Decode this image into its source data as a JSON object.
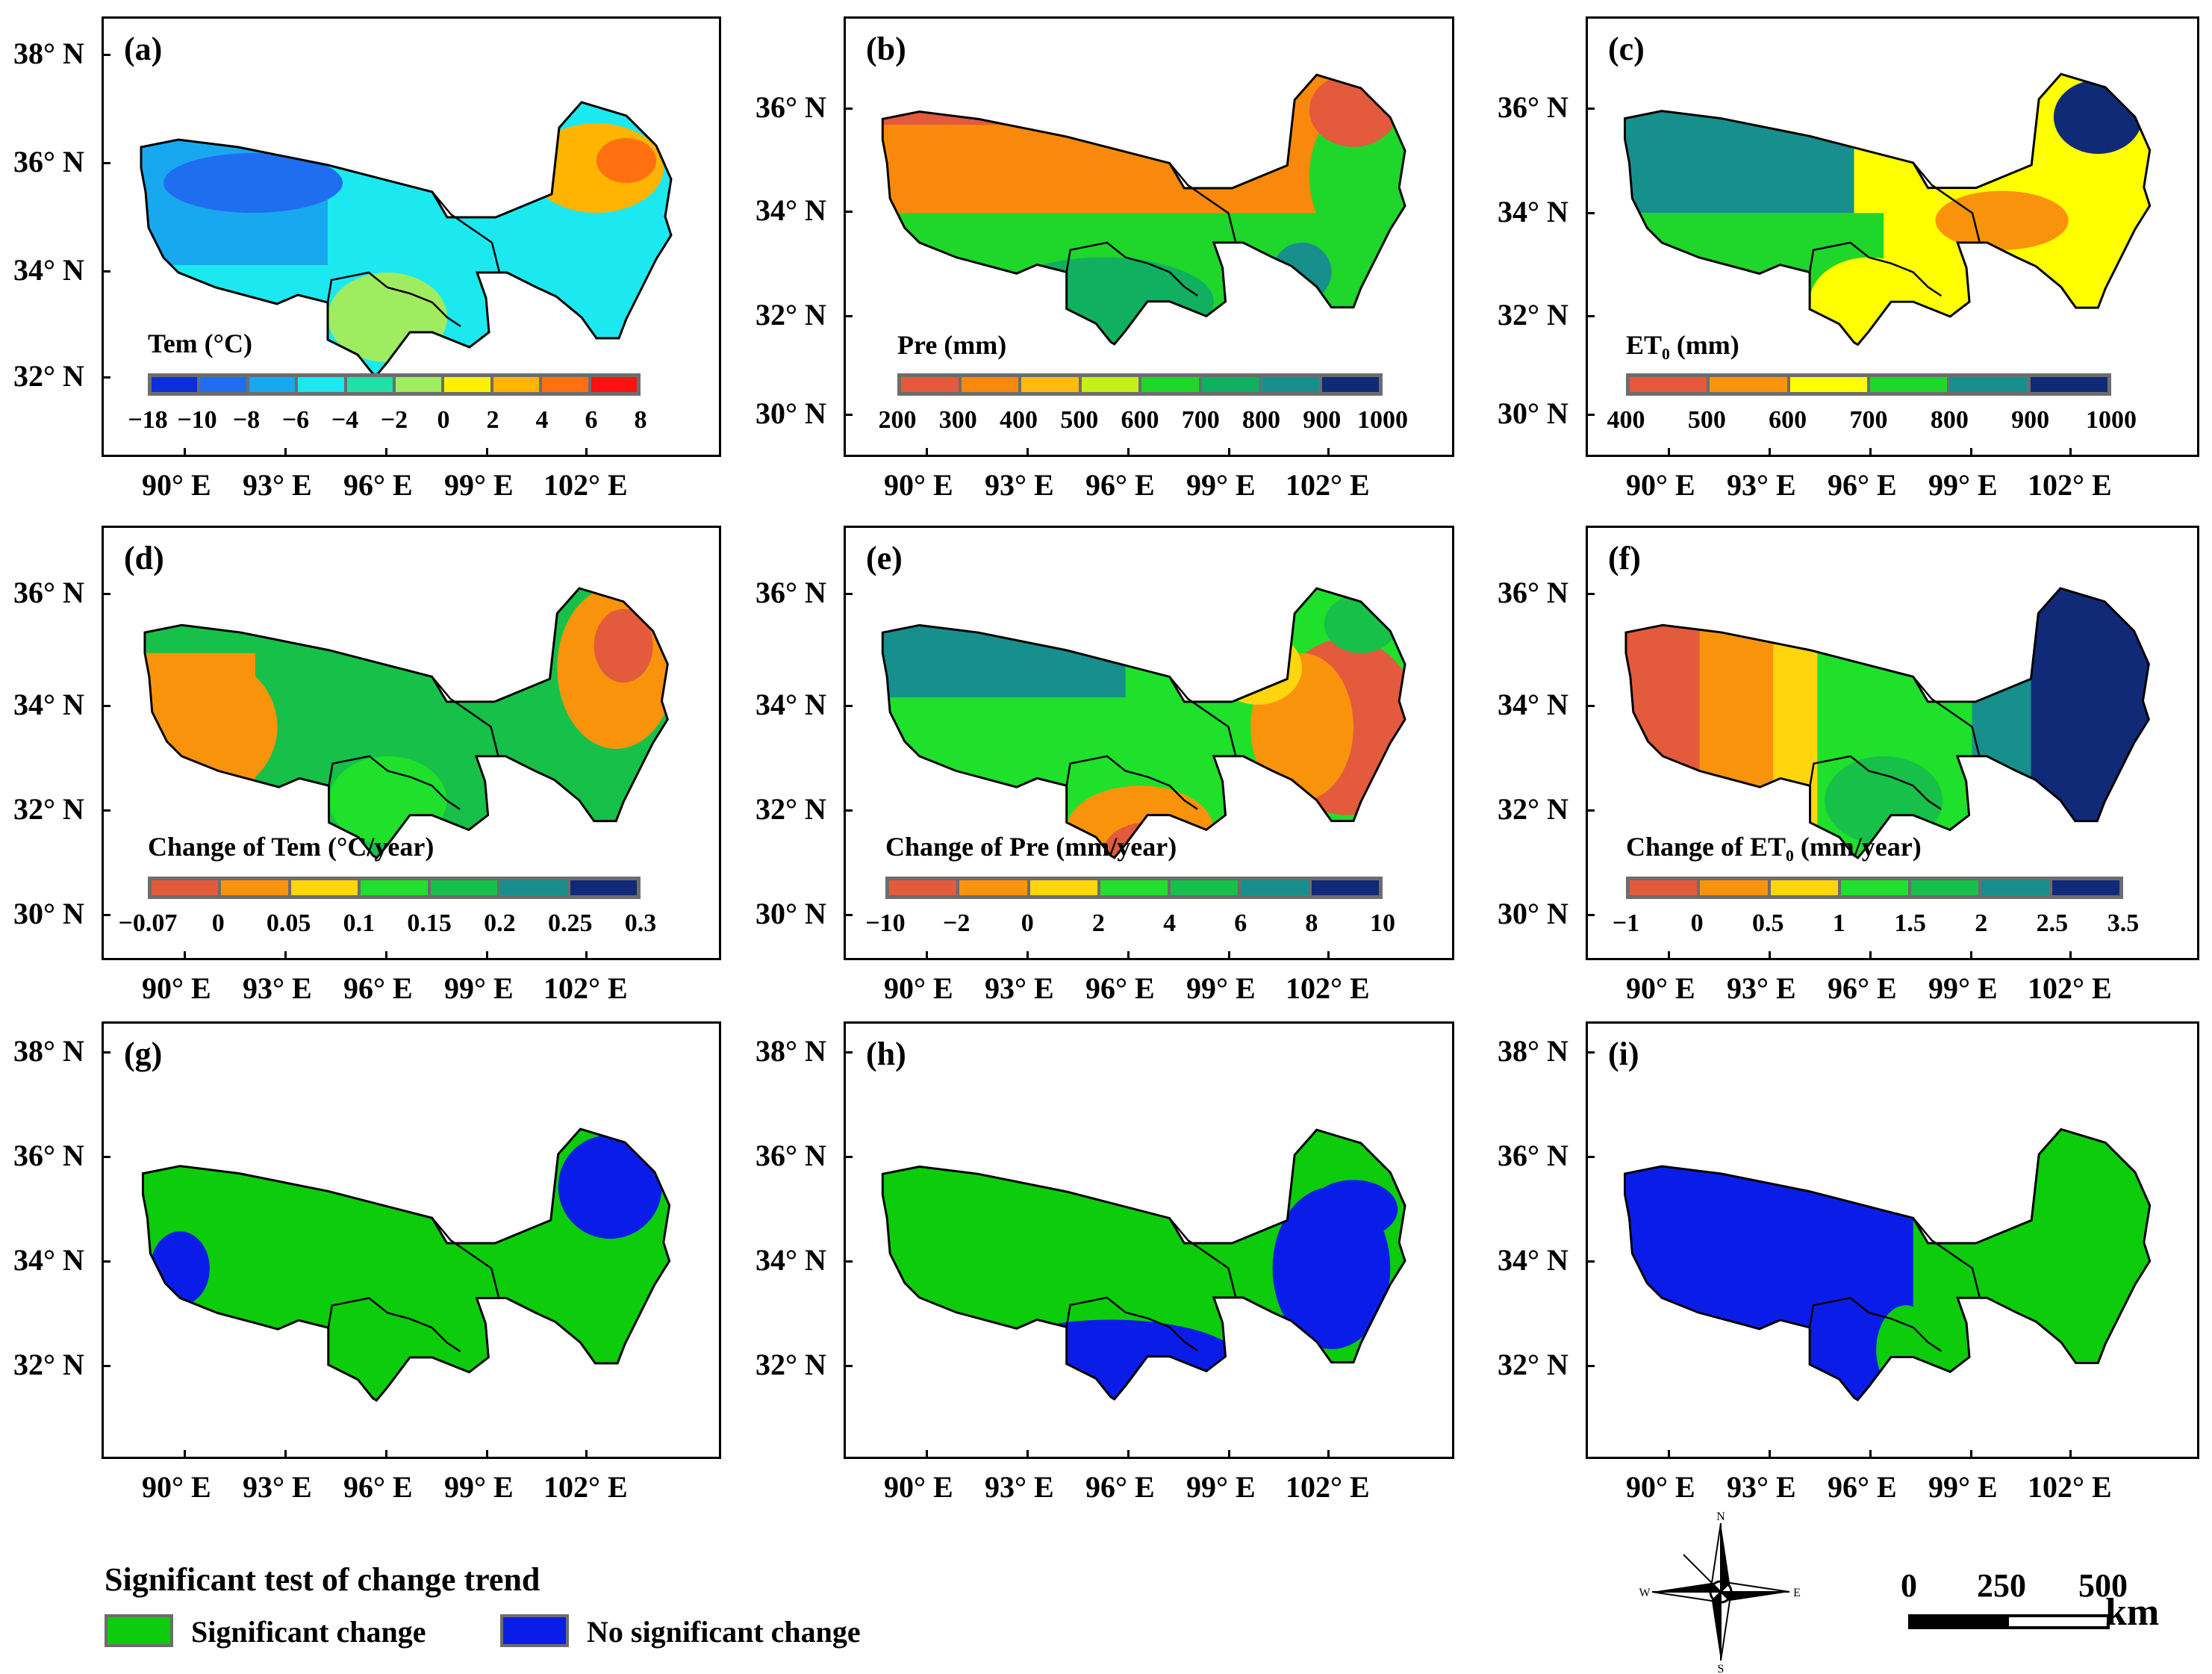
{
  "panels": [
    {
      "letter": "(a)",
      "legend_title": "Tem (°C)",
      "legend_labels": [
        "−18",
        "−10",
        "−8",
        "−6",
        "−4",
        "−2",
        "0",
        "2",
        "4",
        "6",
        "8"
      ],
      "legend_colors": [
        "#0a2fd8",
        "#1f6ef0",
        "#18a8f0",
        "#1ce8f0",
        "#20e0a8",
        "#a0ec60",
        "#fff200",
        "#ffb400",
        "#ff7010",
        "#ff1010"
      ],
      "lat_labels": [
        "38° N",
        "36° N",
        "34° N",
        "32° N"
      ],
      "lon_labels": [
        "90° E",
        "93° E",
        "96° E",
        "99° E",
        "102° E"
      ]
    },
    {
      "letter": "(b)",
      "legend_title": "Pre (mm)",
      "legend_labels": [
        "200",
        "300",
        "400",
        "500",
        "600",
        "700",
        "800",
        "900",
        "1000"
      ],
      "legend_colors": [
        "#e35a3c",
        "#f9890c",
        "#ffbb0e",
        "#c6ef1a",
        "#1fd62a",
        "#10b060",
        "#178f8c",
        "#102a78"
      ],
      "lat_labels": [
        "36° N",
        "34° N",
        "32° N",
        "30° N"
      ],
      "lon_labels": [
        "90° E",
        "93° E",
        "96° E",
        "99° E",
        "102° E"
      ]
    },
    {
      "letter": "(c)",
      "legend_title": "ET₀ (mm)",
      "legend_labels": [
        "400",
        "500",
        "600",
        "700",
        "800",
        "900",
        "1000"
      ],
      "legend_colors": [
        "#e35a3c",
        "#f9930c",
        "#ffff00",
        "#1fd62a",
        "#178f8c",
        "#102a78"
      ],
      "lat_labels": [
        "36° N",
        "34° N",
        "32° N",
        "30° N"
      ],
      "lon_labels": [
        "90° E",
        "93° E",
        "96° E",
        "99° E",
        "102° E"
      ]
    },
    {
      "letter": "(d)",
      "legend_title": "Change of Tem (°C/year)",
      "legend_labels": [
        "−0.07",
        "0",
        "0.05",
        "0.1",
        "0.15",
        "0.2",
        "0.25",
        "0.3"
      ],
      "legend_colors": [
        "#e35a3c",
        "#f9930c",
        "#ffd50e",
        "#1fe02a",
        "#17c048",
        "#178f8c",
        "#102a78"
      ],
      "lat_labels": [
        "36° N",
        "34° N",
        "32° N",
        "30° N"
      ],
      "lon_labels": [
        "90° E",
        "93° E",
        "96° E",
        "99° E",
        "102° E"
      ]
    },
    {
      "letter": "(e)",
      "legend_title": "Change of Pre (mm/year)",
      "legend_labels": [
        "−10",
        "−2",
        "0",
        "2",
        "4",
        "6",
        "8",
        "10"
      ],
      "legend_colors": [
        "#e35a3c",
        "#f9930c",
        "#ffd50e",
        "#1fe02a",
        "#17c048",
        "#178f8c",
        "#102a78"
      ],
      "lat_labels": [
        "36° N",
        "34° N",
        "32° N",
        "30° N"
      ],
      "lon_labels": [
        "90° E",
        "93° E",
        "96° E",
        "99° E",
        "102° E"
      ]
    },
    {
      "letter": "(f)",
      "legend_title": "Change of ET₀ (mm/year)",
      "legend_labels": [
        "−1",
        "0",
        "0.5",
        "1",
        "1.5",
        "2",
        "2.5",
        "3.5"
      ],
      "legend_colors": [
        "#e35a3c",
        "#f9930c",
        "#ffd50e",
        "#1fe02a",
        "#17c048",
        "#178f8c",
        "#102a78"
      ],
      "lat_labels": [
        "36° N",
        "34° N",
        "32° N",
        "30° N"
      ],
      "lon_labels": [
        "90° E",
        "93° E",
        "96° E",
        "99° E",
        "102° E"
      ]
    },
    {
      "letter": "(g)",
      "lat_labels": [
        "38° N",
        "36° N",
        "34° N",
        "32° N"
      ],
      "lon_labels": [
        "90° E",
        "93° E",
        "96° E",
        "99° E",
        "102° E"
      ]
    },
    {
      "letter": "(h)",
      "lat_labels": [
        "38° N",
        "36° N",
        "34° N",
        "32° N"
      ],
      "lon_labels": [
        "90° E",
        "93° E",
        "96° E",
        "99° E",
        "102° E"
      ]
    },
    {
      "letter": "(i)",
      "lat_labels": [
        "38° N",
        "36° N",
        "34° N",
        "32° N"
      ],
      "lon_labels": [
        "90° E",
        "93° E",
        "96° E",
        "99° E",
        "102° E"
      ]
    }
  ],
  "significance_legend": {
    "title": "Significant test of change trend",
    "items": [
      {
        "label": "Significant change",
        "color": "#0ccc0c"
      },
      {
        "label": "No significant change",
        "color": "#0a1de8"
      }
    ]
  },
  "compass": {
    "n": "N",
    "s": "S",
    "e": "E",
    "w": "W"
  },
  "scale_bar": {
    "labels": [
      "0",
      "250",
      "500"
    ],
    "unit": "km"
  }
}
